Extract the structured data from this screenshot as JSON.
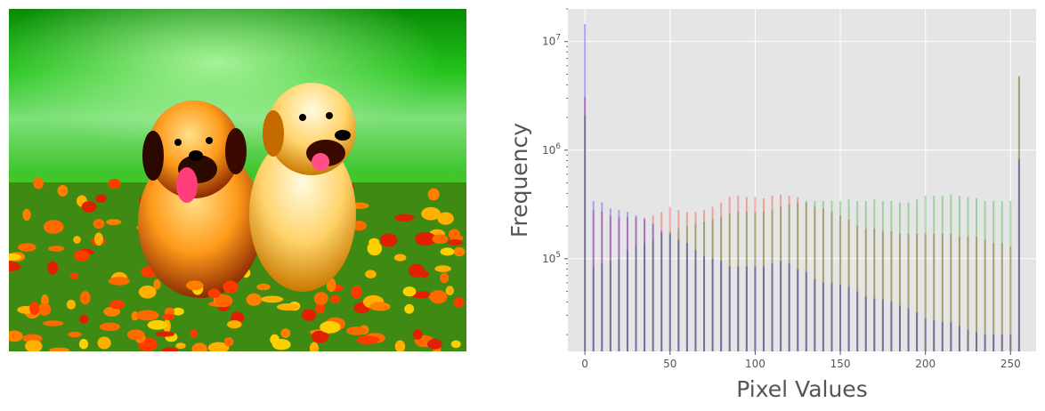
{
  "figure": {
    "left_panel": {
      "kind": "photo",
      "subject": "puppies-in-flower-field"
    },
    "right_panel": {
      "kind": "histogram"
    }
  },
  "chart_data": {
    "type": "bar",
    "title": "",
    "xlabel": "Pixel Values",
    "ylabel": "Frequency",
    "xlim": [
      -10,
      265
    ],
    "ylim": [
      14000,
      20000000
    ],
    "yscale": "log",
    "grid": true,
    "background": "#e5e5e5",
    "xticks": [
      0,
      50,
      100,
      150,
      200,
      250
    ],
    "xtick_labels": [
      "0",
      "50",
      "100",
      "150",
      "200",
      "250"
    ],
    "yticks": [
      100000,
      1000000,
      10000000
    ],
    "ytick_labels": [
      "10^5",
      "10^6",
      "10^7"
    ],
    "bar_alpha": 0.3,
    "x": [
      0,
      5,
      10,
      15,
      20,
      25,
      30,
      35,
      40,
      45,
      50,
      55,
      60,
      65,
      70,
      75,
      80,
      85,
      90,
      95,
      100,
      105,
      110,
      115,
      120,
      125,
      130,
      135,
      140,
      145,
      150,
      155,
      160,
      165,
      170,
      175,
      180,
      185,
      190,
      195,
      200,
      205,
      210,
      215,
      220,
      225,
      230,
      235,
      240,
      245,
      250,
      255
    ],
    "series": [
      {
        "color": "#ff0000",
        "values": [
          3100000,
          280000,
          270000,
          250000,
          240000,
          240000,
          240000,
          240000,
          250000,
          270000,
          300000,
          280000,
          270000,
          270000,
          280000,
          300000,
          330000,
          370000,
          380000,
          370000,
          370000,
          360000,
          380000,
          390000,
          380000,
          370000,
          330000,
          300000,
          290000,
          270000,
          250000,
          230000,
          200000,
          190000,
          190000,
          180000,
          180000,
          170000,
          170000,
          170000,
          170000,
          170000,
          170000,
          170000,
          160000,
          160000,
          160000,
          150000,
          140000,
          140000,
          130000,
          4800000
        ]
      },
      {
        "color": "#00a000",
        "values": [
          2100000,
          85000,
          90000,
          95000,
          100000,
          120000,
          130000,
          140000,
          150000,
          170000,
          180000,
          190000,
          200000,
          210000,
          220000,
          230000,
          240000,
          260000,
          270000,
          270000,
          270000,
          270000,
          280000,
          300000,
          320000,
          330000,
          340000,
          340000,
          340000,
          340000,
          340000,
          350000,
          340000,
          340000,
          350000,
          340000,
          340000,
          330000,
          330000,
          350000,
          380000,
          380000,
          380000,
          390000,
          380000,
          370000,
          360000,
          340000,
          340000,
          340000,
          340000,
          4800000
        ]
      },
      {
        "color": "#0000ff",
        "values": [
          14500000,
          340000,
          330000,
          290000,
          280000,
          270000,
          250000,
          230000,
          210000,
          180000,
          170000,
          150000,
          140000,
          120000,
          105000,
          100000,
          95000,
          85000,
          85000,
          85000,
          85000,
          85000,
          90000,
          95000,
          90000,
          80000,
          75000,
          65000,
          60000,
          60000,
          58000,
          55000,
          50000,
          45000,
          43000,
          42000,
          40000,
          37000,
          35000,
          32000,
          28000,
          27000,
          26000,
          26000,
          24000,
          22000,
          21000,
          20000,
          20000,
          20000,
          20000,
          820000
        ]
      }
    ]
  }
}
